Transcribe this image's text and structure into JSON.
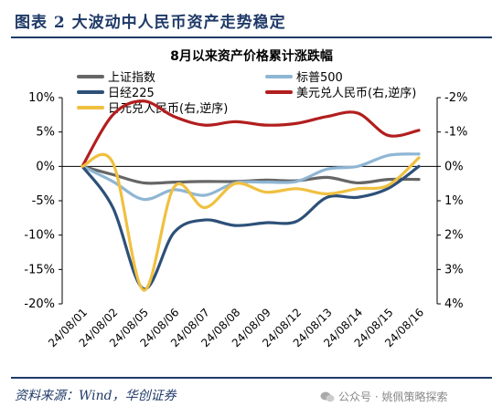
{
  "figure": {
    "title": "图表 2   大波动中人民币资产走势稳定",
    "source": "资料来源：Wind，华创证券",
    "watermark": "公众号 · 姚佩策略探索"
  },
  "chart_data": {
    "type": "line",
    "title": "8月以来资产价格累计涨跌幅",
    "xlabel": "",
    "ylabel": "",
    "x": [
      "24/08/01",
      "24/08/02",
      "24/08/05",
      "24/08/06",
      "24/08/07",
      "24/08/08",
      "24/08/09",
      "24/08/12",
      "24/08/13",
      "24/08/14",
      "24/08/15",
      "24/08/16"
    ],
    "left_axis": {
      "ticks": [
        "10%",
        "5%",
        "0%",
        "-5%",
        "-10%",
        "-15%",
        "-20%"
      ],
      "ylim": [
        -20,
        10
      ]
    },
    "right_axis": {
      "ticks": [
        "-2%",
        "-1%",
        "0%",
        "1%",
        "2%",
        "3%",
        "4%"
      ],
      "ylim": [
        -2,
        4
      ],
      "reversed": true
    },
    "grid": false,
    "legend_placement": "top",
    "series": [
      {
        "name": "上证指数",
        "axis": "left",
        "color": "#666666",
        "values": [
          0,
          -1.2,
          -2.4,
          -2.3,
          -2.2,
          -2.2,
          -2.0,
          -2.1,
          -1.6,
          -2.4,
          -1.9,
          -1.9
        ]
      },
      {
        "name": "标普500",
        "axis": "left",
        "color": "#8fb6d4",
        "values": [
          0,
          -2.2,
          -4.8,
          -3.4,
          -4.2,
          -2.4,
          -2.3,
          -2.2,
          -0.4,
          0.0,
          1.6,
          1.8
        ]
      },
      {
        "name": "日经225",
        "axis": "left",
        "color": "#2d5078",
        "values": [
          0,
          -6.0,
          -17.8,
          -9.6,
          -7.8,
          -8.6,
          -8.2,
          -8.0,
          -4.5,
          -4.5,
          -3.2,
          0.0
        ]
      },
      {
        "name": "美元兑人民币(右,逆序)",
        "axis": "right",
        "color": "#b21e1e",
        "values": [
          0,
          -1.5,
          -1.9,
          -1.45,
          -1.2,
          -1.3,
          -1.2,
          -1.25,
          -1.45,
          -1.55,
          -0.9,
          -1.05
        ]
      },
      {
        "name": "日元兑人民币(右,逆序)",
        "axis": "right",
        "color": "#f0c040",
        "values": [
          0,
          -0.1,
          3.6,
          0.6,
          1.2,
          0.5,
          0.75,
          0.65,
          0.8,
          0.65,
          0.55,
          -0.25
        ]
      }
    ]
  }
}
